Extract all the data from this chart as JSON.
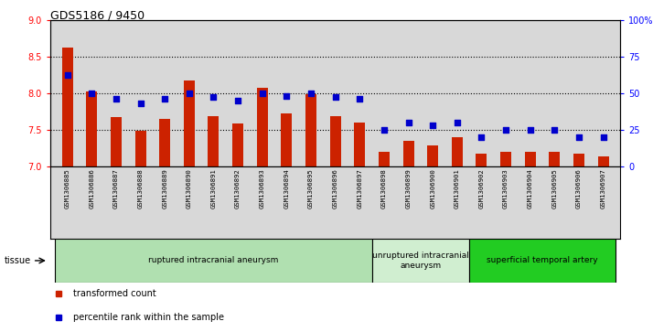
{
  "title": "GDS5186 / 9450",
  "categories": [
    "GSM1306885",
    "GSM1306886",
    "GSM1306887",
    "GSM1306888",
    "GSM1306889",
    "GSM1306890",
    "GSM1306891",
    "GSM1306892",
    "GSM1306893",
    "GSM1306894",
    "GSM1306895",
    "GSM1306896",
    "GSM1306897",
    "GSM1306898",
    "GSM1306899",
    "GSM1306900",
    "GSM1306901",
    "GSM1306902",
    "GSM1306903",
    "GSM1306904",
    "GSM1306905",
    "GSM1306906",
    "GSM1306907"
  ],
  "bar_values": [
    8.62,
    8.02,
    7.67,
    7.48,
    7.65,
    8.17,
    7.68,
    7.58,
    8.07,
    7.72,
    7.98,
    7.68,
    7.6,
    7.2,
    7.35,
    7.28,
    7.4,
    7.17,
    7.2,
    7.2,
    7.2,
    7.17,
    7.13
  ],
  "scatter_values": [
    62,
    50,
    46,
    43,
    46,
    50,
    47,
    45,
    50,
    48,
    50,
    47,
    46,
    25,
    30,
    28,
    30,
    20,
    25,
    25,
    25,
    20,
    20
  ],
  "bar_color": "#cc2200",
  "scatter_color": "#0000cc",
  "ylim_left": [
    7.0,
    9.0
  ],
  "ylim_right": [
    0,
    100
  ],
  "yticks_left": [
    7.0,
    7.5,
    8.0,
    8.5,
    9.0
  ],
  "yticks_right": [
    0,
    25,
    50,
    75,
    100
  ],
  "ytick_labels_right": [
    "0",
    "25",
    "50",
    "75",
    "100%"
  ],
  "grid_values": [
    7.5,
    8.0,
    8.5
  ],
  "groups": [
    {
      "label": "ruptured intracranial aneurysm",
      "start": 0,
      "end": 13,
      "color": "#b0e0b0"
    },
    {
      "label": "unruptured intracranial\naneurysm",
      "start": 13,
      "end": 17,
      "color": "#d0eed0"
    },
    {
      "label": "superficial temporal artery",
      "start": 17,
      "end": 23,
      "color": "#22cc22"
    }
  ],
  "legend_items": [
    {
      "label": "transformed count",
      "color": "#cc2200"
    },
    {
      "label": "percentile rank within the sample",
      "color": "#0000cc"
    }
  ],
  "tissue_label": "tissue",
  "plot_bg": "#d8d8d8",
  "tick_area_bg": "#d8d8d8"
}
